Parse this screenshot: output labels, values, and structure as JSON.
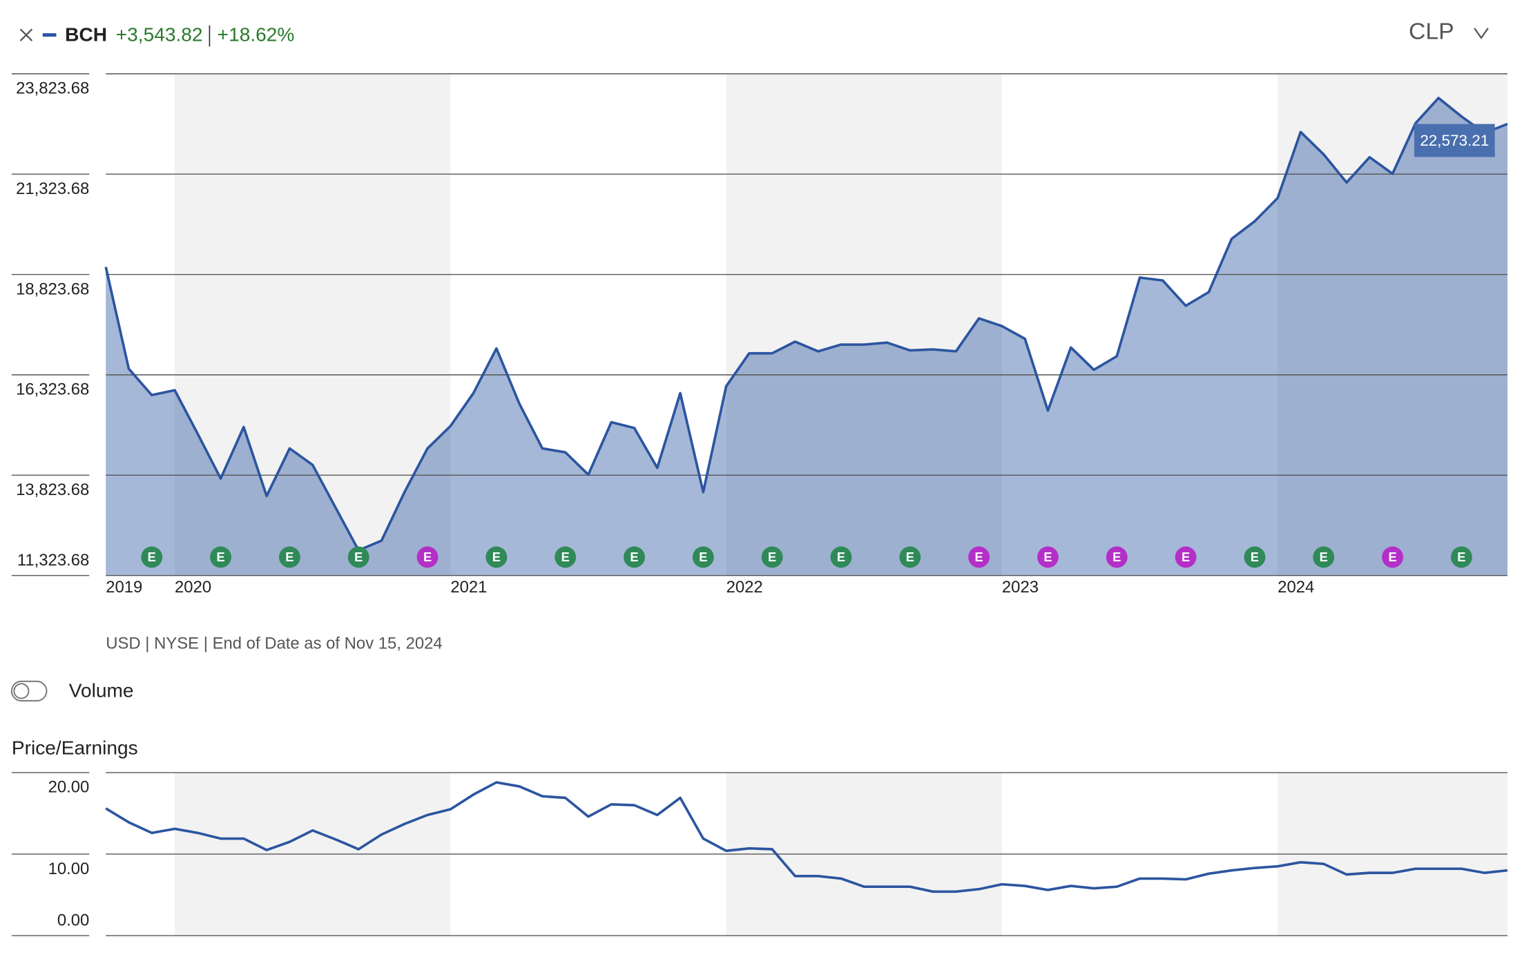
{
  "header": {
    "symbol": "BCH",
    "change": "+3,543.82",
    "change_percent": "+18.62%",
    "currency": "CLP"
  },
  "footnote": "USD | NYSE | End of Date as of Nov 15, 2024",
  "volume_toggle_label": "Volume",
  "chart_data": [
    {
      "type": "area",
      "color": "#2c55a0",
      "grid": true,
      "categories": [
        "2019",
        null,
        null,
        "2020",
        null,
        null,
        null,
        null,
        null,
        null,
        null,
        null,
        null,
        null,
        null,
        "2021",
        null,
        null,
        null,
        null,
        null,
        null,
        null,
        null,
        null,
        null,
        null,
        "2022",
        null,
        null,
        null,
        null,
        null,
        null,
        null,
        null,
        null,
        null,
        null,
        "2023",
        null,
        null,
        null,
        null,
        null,
        null,
        null,
        null,
        null,
        null,
        null,
        "2024",
        null,
        null,
        null,
        null,
        null,
        null,
        null,
        null,
        null,
        null
      ],
      "values": [
        19012,
        16474,
        15820,
        15941,
        14853,
        13741,
        15023,
        13306,
        14491,
        14080,
        13016,
        11952,
        12194,
        13403,
        14491,
        15047,
        15869,
        16981,
        15603,
        14491,
        14394,
        13838,
        15144,
        14999,
        14007,
        15869,
        13403,
        16039,
        16861,
        16861,
        17151,
        16909,
        17078,
        17078,
        17127,
        16933,
        16957,
        16909,
        17731,
        17538,
        17223,
        15434,
        17006,
        16450,
        16788,
        18747,
        18674,
        18045,
        18384,
        19714,
        20149,
        20729,
        22373,
        21817,
        21116,
        21745,
        21334,
        22591,
        23220,
        22760,
        22349,
        22573.21
      ],
      "value_labels": [
        null,
        null,
        null,
        null,
        null,
        null,
        null,
        null,
        null,
        null,
        null,
        null,
        null,
        null,
        null,
        null,
        null,
        null,
        null,
        null,
        null,
        null,
        null,
        null,
        null,
        null,
        null,
        null,
        null,
        null,
        null,
        null,
        null,
        null,
        null,
        null,
        null,
        null,
        null,
        null,
        null,
        null,
        null,
        null,
        null,
        null,
        null,
        null,
        null,
        null,
        null,
        null,
        null,
        null,
        null,
        null,
        null,
        null,
        null,
        null,
        null,
        "22,573.21"
      ],
      "events": [
        null,
        null,
        "E",
        null,
        null,
        "E",
        null,
        null,
        "E",
        null,
        null,
        "E",
        null,
        null,
        "E",
        null,
        null,
        "E",
        null,
        null,
        "E",
        null,
        null,
        "E",
        null,
        null,
        "E",
        null,
        null,
        "E",
        null,
        null,
        "E",
        null,
        null,
        "E",
        null,
        null,
        "E",
        null,
        null,
        "E",
        null,
        null,
        "E",
        null,
        null,
        "E",
        null,
        null,
        "E",
        null,
        null,
        "E",
        null,
        null,
        "E",
        null,
        null,
        "E",
        null,
        null
      ],
      "event_colors": [
        null,
        null,
        "#2f8a58",
        null,
        null,
        "#2f8a58",
        null,
        null,
        "#2f8a58",
        null,
        null,
        "#2f8a58",
        null,
        null,
        "#b42fc8",
        null,
        null,
        "#2f8a58",
        null,
        null,
        "#2f8a58",
        null,
        null,
        "#2f8a58",
        null,
        null,
        "#2f8a58",
        null,
        null,
        "#2f8a58",
        null,
        null,
        "#2f8a58",
        null,
        null,
        "#2f8a58",
        null,
        null,
        "#b42fc8",
        null,
        null,
        "#b42fc8",
        null,
        null,
        "#b42fc8",
        null,
        null,
        "#b42fc8",
        null,
        null,
        "#2f8a58",
        null,
        null,
        "#2f8a58",
        null,
        null,
        "#b42fc8",
        null,
        null,
        "#2f8a58",
        null,
        null
      ],
      "ylim": [
        11323.68,
        23823.68
      ],
      "yticks": [
        {
          "value": 11323.68,
          "label": "11,323.68"
        },
        {
          "value": 13823.68,
          "label": "13,823.68"
        },
        {
          "value": 16323.68,
          "label": "16,323.68"
        },
        {
          "value": 18823.68,
          "label": "18,823.68"
        },
        {
          "value": 21323.68,
          "label": "21,323.68"
        },
        {
          "value": 23823.68,
          "label": "23,823.68"
        }
      ]
    },
    {
      "type": "line",
      "title": "Price/Earnings",
      "color": "#2c55a0",
      "grid": true,
      "values": [
        15.6,
        13.9,
        12.6,
        13.1,
        12.6,
        11.9,
        11.9,
        10.5,
        11.5,
        12.9,
        11.8,
        10.6,
        12.4,
        13.7,
        14.8,
        15.5,
        17.3,
        18.8,
        18.3,
        17.1,
        16.9,
        14.6,
        16.1,
        16.0,
        14.8,
        16.9,
        11.9,
        10.4,
        10.7,
        10.6,
        7.3,
        7.3,
        7.0,
        6.0,
        6.0,
        6.0,
        5.4,
        5.4,
        5.7,
        6.3,
        6.1,
        5.6,
        6.1,
        5.8,
        6.0,
        7.0,
        7.0,
        6.9,
        7.6,
        8.0,
        8.3,
        8.5,
        9.0,
        8.8,
        7.5,
        7.7,
        7.7,
        8.2,
        8.2,
        8.2,
        7.7,
        8.0
      ],
      "ylim": [
        0,
        20
      ],
      "yticks": [
        {
          "value": 0,
          "label": "0.00"
        },
        {
          "value": 10,
          "label": "10.00"
        },
        {
          "value": 20,
          "label": "20.00"
        }
      ]
    }
  ]
}
